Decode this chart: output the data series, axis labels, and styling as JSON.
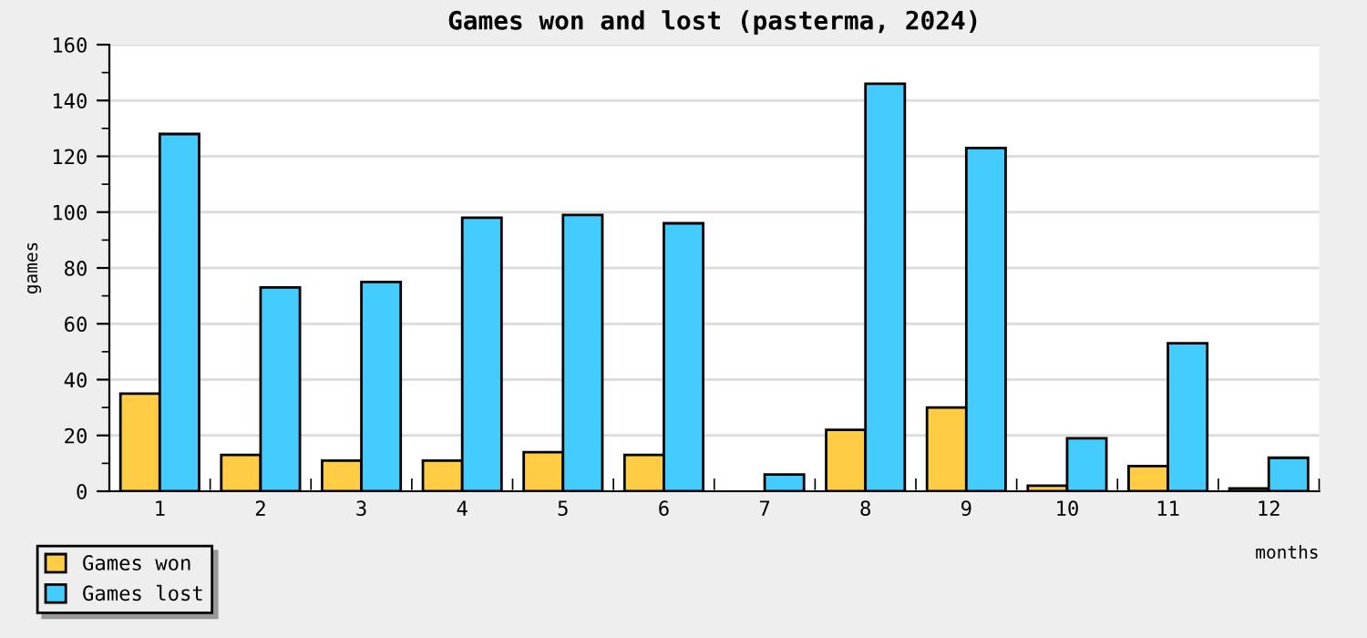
{
  "chart_data": {
    "type": "bar",
    "title": "Games won and lost (pasterma, 2024)",
    "xlabel": "months",
    "ylabel": "games",
    "categories": [
      "1",
      "2",
      "3",
      "4",
      "5",
      "6",
      "7",
      "8",
      "9",
      "10",
      "11",
      "12"
    ],
    "series": [
      {
        "name": "Games won",
        "color": "#ffcc44",
        "values": [
          35,
          13,
          11,
          11,
          14,
          13,
          null,
          22,
          30,
          2,
          9,
          1
        ]
      },
      {
        "name": "Games lost",
        "color": "#44ccff",
        "values": [
          128,
          73,
          75,
          98,
          99,
          96,
          6,
          146,
          123,
          19,
          53,
          12
        ]
      }
    ],
    "ylim": [
      0,
      160
    ],
    "yticks": [
      0,
      20,
      40,
      60,
      80,
      100,
      120,
      140,
      160
    ],
    "grid": "y",
    "legend": "bottom left"
  }
}
